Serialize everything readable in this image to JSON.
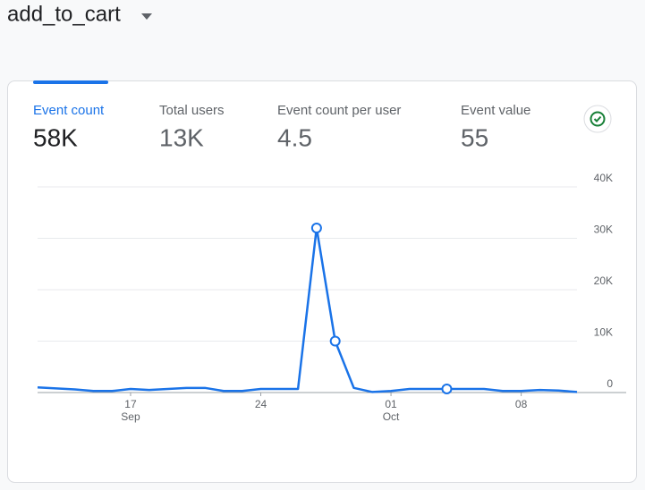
{
  "header": {
    "title": "add_to_cart"
  },
  "metrics": [
    {
      "label": "Event count",
      "value": "58K"
    },
    {
      "label": "Total users",
      "value": "13K"
    },
    {
      "label": "Event count per user",
      "value": "4.5"
    },
    {
      "label": "Event value",
      "value": "55"
    }
  ],
  "chart_data": {
    "type": "line",
    "categories": [
      null,
      null,
      null,
      null,
      null,
      "17 Sep",
      null,
      null,
      null,
      null,
      null,
      null,
      "24",
      null,
      null,
      null,
      null,
      null,
      null,
      "01 Oct",
      null,
      null,
      null,
      null,
      null,
      null,
      "08",
      null,
      null,
      null
    ],
    "series": [
      {
        "name": "Event count",
        "color": "#1a73e8",
        "values": [
          1000,
          800,
          600,
          300,
          300,
          700,
          500,
          700,
          900,
          900,
          300,
          300,
          700,
          700,
          700,
          32000,
          10000,
          900,
          100,
          300,
          700,
          700,
          700,
          700,
          700,
          300,
          300,
          500,
          400,
          100
        ]
      }
    ],
    "markers": [
      15,
      16,
      22
    ],
    "ylim": [
      0,
      40000
    ],
    "yticks": [
      0,
      {
        "value": 10000,
        "label": "10K"
      },
      {
        "value": 20000,
        "label": "20K"
      },
      {
        "value": 30000,
        "label": "30K"
      },
      {
        "value": 40000,
        "label": "40K"
      }
    ],
    "grid": true
  }
}
